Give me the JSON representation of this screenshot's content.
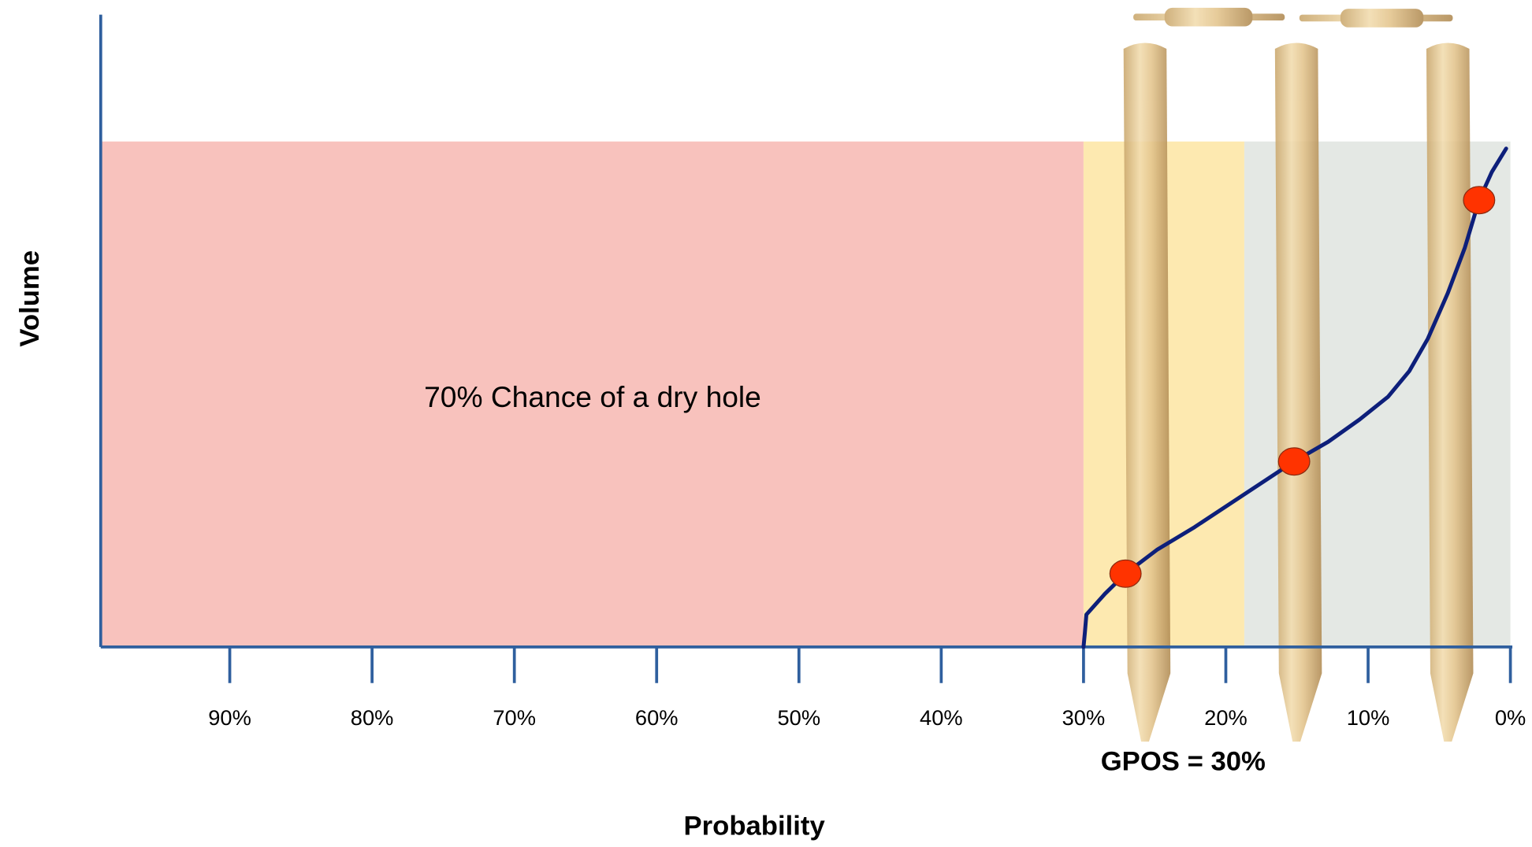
{
  "chart_data": {
    "type": "line",
    "xlabel": "Probability",
    "ylabel": "Volume",
    "xlim": [
      99,
      0
    ],
    "ylim": [
      0,
      100
    ],
    "xticks": [
      {
        "value": 90,
        "label": "90%"
      },
      {
        "value": 80,
        "label": "80%"
      },
      {
        "value": 70,
        "label": "70%"
      },
      {
        "value": 60,
        "label": "60%"
      },
      {
        "value": 50,
        "label": "50%"
      },
      {
        "value": 40,
        "label": "40%"
      },
      {
        "value": 30,
        "label": "30%"
      },
      {
        "value": 20,
        "label": "20%"
      },
      {
        "value": 10,
        "label": "10%"
      },
      {
        "value": 0,
        "label": "0%"
      }
    ],
    "regions": [
      {
        "from": 99,
        "to": 30,
        "color": "#f8c2bd"
      },
      {
        "from": 30,
        "to": 18.7,
        "color": "#fde9b0"
      },
      {
        "from": 18.7,
        "to": 0,
        "color": "#e4e8e4"
      }
    ],
    "series": [
      {
        "color": "#0d1f7a",
        "x": [
          30,
          29.9,
          29.8,
          28.5,
          27.05,
          24.8,
          22.2,
          18.7,
          15.2,
          12.8,
          10.6,
          8.6,
          7.1,
          5.8,
          4.4,
          3.2,
          2.2,
          1.3,
          0.3
        ],
        "values": [
          0,
          3,
          6.4,
          10.5,
          14.5,
          19.3,
          23.7,
          30.2,
          36.7,
          40.6,
          45,
          49.5,
          54.6,
          61,
          70,
          79,
          88.4,
          94,
          98.6
        ]
      }
    ],
    "markers": {
      "color": "#ff3300",
      "x": [
        27.05,
        15.2,
        2.2
      ],
      "values": [
        14.5,
        36.7,
        88.4
      ]
    },
    "annotations": [
      {
        "text": "70% Chance of a dry hole",
        "x": 64.5,
        "y": 49
      },
      {
        "text": "GPOS = 30%",
        "x": 23,
        "y": -23
      }
    ]
  }
}
